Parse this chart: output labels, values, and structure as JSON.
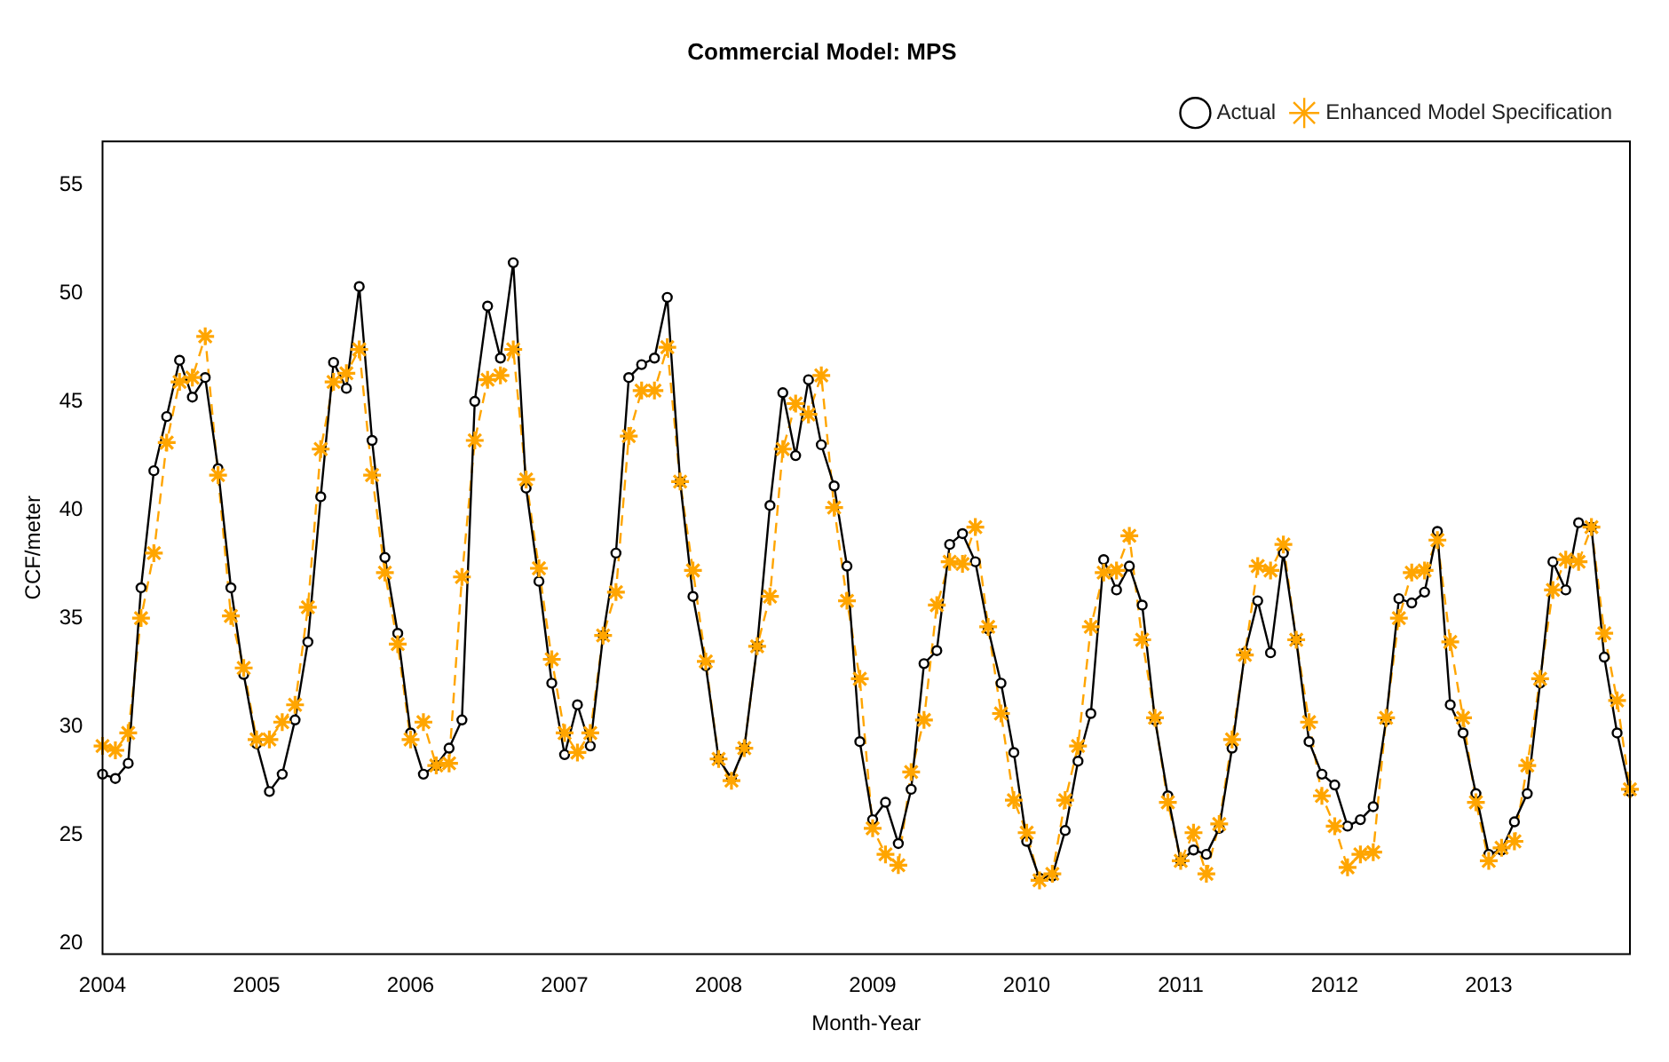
{
  "chart_data": {
    "type": "line",
    "title": "Commercial Model: MPS",
    "xlabel": "Month-Year",
    "ylabel": "CCF/meter",
    "categories": [
      "2004",
      null,
      null,
      null,
      null,
      null,
      null,
      null,
      null,
      null,
      null,
      null,
      "2005",
      null,
      null,
      null,
      null,
      null,
      null,
      null,
      null,
      null,
      null,
      null,
      "2006",
      null,
      null,
      null,
      null,
      null,
      null,
      null,
      null,
      null,
      null,
      null,
      "2007",
      null,
      null,
      null,
      null,
      null,
      null,
      null,
      null,
      null,
      null,
      null,
      "2008",
      null,
      null,
      null,
      null,
      null,
      null,
      null,
      null,
      null,
      null,
      null,
      "2009",
      null,
      null,
      null,
      null,
      null,
      null,
      null,
      null,
      null,
      null,
      null,
      "2010",
      null,
      null,
      null,
      null,
      null,
      null,
      null,
      null,
      null,
      null,
      null,
      "2011",
      null,
      null,
      null,
      null,
      null,
      null,
      null,
      null,
      null,
      null,
      null,
      "2012",
      null,
      null,
      null,
      null,
      null,
      null,
      null,
      null,
      null,
      null,
      null,
      "2013",
      null,
      null,
      null,
      null,
      null,
      null,
      null,
      null,
      null,
      null,
      null
    ],
    "ylim": [
      19.5,
      57
    ],
    "yticks": [
      20,
      25,
      30,
      35,
      40,
      45,
      50,
      55
    ],
    "grid": false,
    "legend": "top right",
    "series": [
      {
        "name": "Actual",
        "color": "#000000",
        "marker": "circle",
        "line_style": "solid",
        "values": [
          27.8,
          27.6,
          28.3,
          36.4,
          41.8,
          44.3,
          46.9,
          45.2,
          46.1,
          41.9,
          36.4,
          32.4,
          29.2,
          27.0,
          27.8,
          30.3,
          33.9,
          40.6,
          46.8,
          45.6,
          50.3,
          43.2,
          37.8,
          34.3,
          29.7,
          27.8,
          28.2,
          29.0,
          30.3,
          45.0,
          49.4,
          47.0,
          51.4,
          41.0,
          36.7,
          32.0,
          28.7,
          31.0,
          29.1,
          34.2,
          38.0,
          46.1,
          46.7,
          47.0,
          49.8,
          41.3,
          36.0,
          32.8,
          28.5,
          27.6,
          29.0,
          33.7,
          40.2,
          45.4,
          42.5,
          46.0,
          43.0,
          41.1,
          37.4,
          29.3,
          25.7,
          26.5,
          24.6,
          27.1,
          32.9,
          33.5,
          38.4,
          38.9,
          37.6,
          34.5,
          32.0,
          28.8,
          24.7,
          23.0,
          23.1,
          25.2,
          28.4,
          30.6,
          37.7,
          36.3,
          37.4,
          35.6,
          30.3,
          26.8,
          23.8,
          24.3,
          24.1,
          25.3,
          29.0,
          33.4,
          35.8,
          33.4,
          38.0,
          34.0,
          29.3,
          27.8,
          27.3,
          25.4,
          25.7,
          26.3,
          30.3,
          35.9,
          35.7,
          36.2,
          39.0,
          31.0,
          29.7,
          26.9,
          24.1,
          24.3,
          25.6,
          26.9,
          32.0,
          37.6,
          36.3,
          39.4,
          39.2,
          33.2,
          29.7,
          27.0
        ]
      },
      {
        "name": "Enhanced Model Specification",
        "color": "#ffa500",
        "marker": "star",
        "line_style": "dashed",
        "values": [
          29.1,
          28.9,
          29.7,
          35.0,
          38.0,
          43.1,
          45.9,
          46.1,
          48.0,
          41.6,
          35.1,
          32.7,
          29.4,
          29.4,
          30.2,
          31.0,
          35.5,
          42.8,
          45.9,
          46.3,
          47.4,
          41.6,
          37.1,
          33.8,
          29.4,
          30.2,
          28.2,
          28.3,
          36.9,
          43.2,
          46.0,
          46.2,
          47.4,
          41.4,
          37.3,
          33.1,
          29.7,
          28.8,
          29.7,
          34.2,
          36.2,
          43.4,
          45.5,
          45.5,
          47.5,
          41.3,
          37.2,
          33.0,
          28.5,
          27.5,
          29.0,
          33.7,
          36.0,
          42.8,
          44.9,
          44.4,
          46.2,
          40.1,
          35.8,
          32.2,
          25.3,
          24.1,
          23.6,
          27.9,
          30.3,
          35.6,
          37.6,
          37.5,
          39.2,
          34.6,
          30.6,
          26.6,
          25.1,
          22.9,
          23.2,
          26.6,
          29.1,
          34.6,
          37.1,
          37.2,
          38.8,
          34.0,
          30.4,
          26.5,
          23.8,
          25.1,
          23.2,
          25.5,
          29.4,
          33.3,
          37.4,
          37.2,
          38.4,
          34.0,
          30.2,
          26.8,
          25.4,
          23.5,
          24.1,
          24.2,
          30.4,
          35.0,
          37.1,
          37.2,
          38.6,
          33.9,
          30.4,
          26.5,
          23.8,
          24.4,
          24.7,
          28.2,
          32.2,
          36.3,
          37.7,
          37.6,
          39.2,
          34.3,
          31.2,
          27.1
        ]
      }
    ]
  }
}
